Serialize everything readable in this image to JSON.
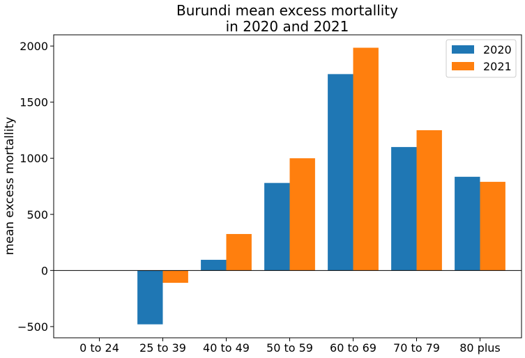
{
  "chart_data": {
    "type": "bar",
    "title_lines": [
      "Burundi mean excess mortallity",
      "in 2020 and 2021"
    ],
    "xlabel": "",
    "ylabel": "mean excess mortallity",
    "categories": [
      "0 to 24",
      "25 to 39",
      "40 to 49",
      "50 to 59",
      "60 to 69",
      "70 to 79",
      "80 plus"
    ],
    "series": [
      {
        "name": "2020",
        "color": "#1f77b4",
        "values": [
          0,
          -480,
          95,
          780,
          1750,
          1100,
          835
        ]
      },
      {
        "name": "2021",
        "color": "#ff7f0e",
        "values": [
          0,
          -110,
          325,
          1000,
          1985,
          1250,
          790
        ]
      }
    ],
    "ylim": [
      -600,
      2100
    ],
    "yticks": [
      -500,
      0,
      500,
      1000,
      1500,
      2000
    ],
    "ytick_labels": [
      "−500",
      "0",
      "500",
      "1000",
      "1500",
      "2000"
    ],
    "zero_line": true,
    "grid": false,
    "legend_position": "top-right"
  }
}
